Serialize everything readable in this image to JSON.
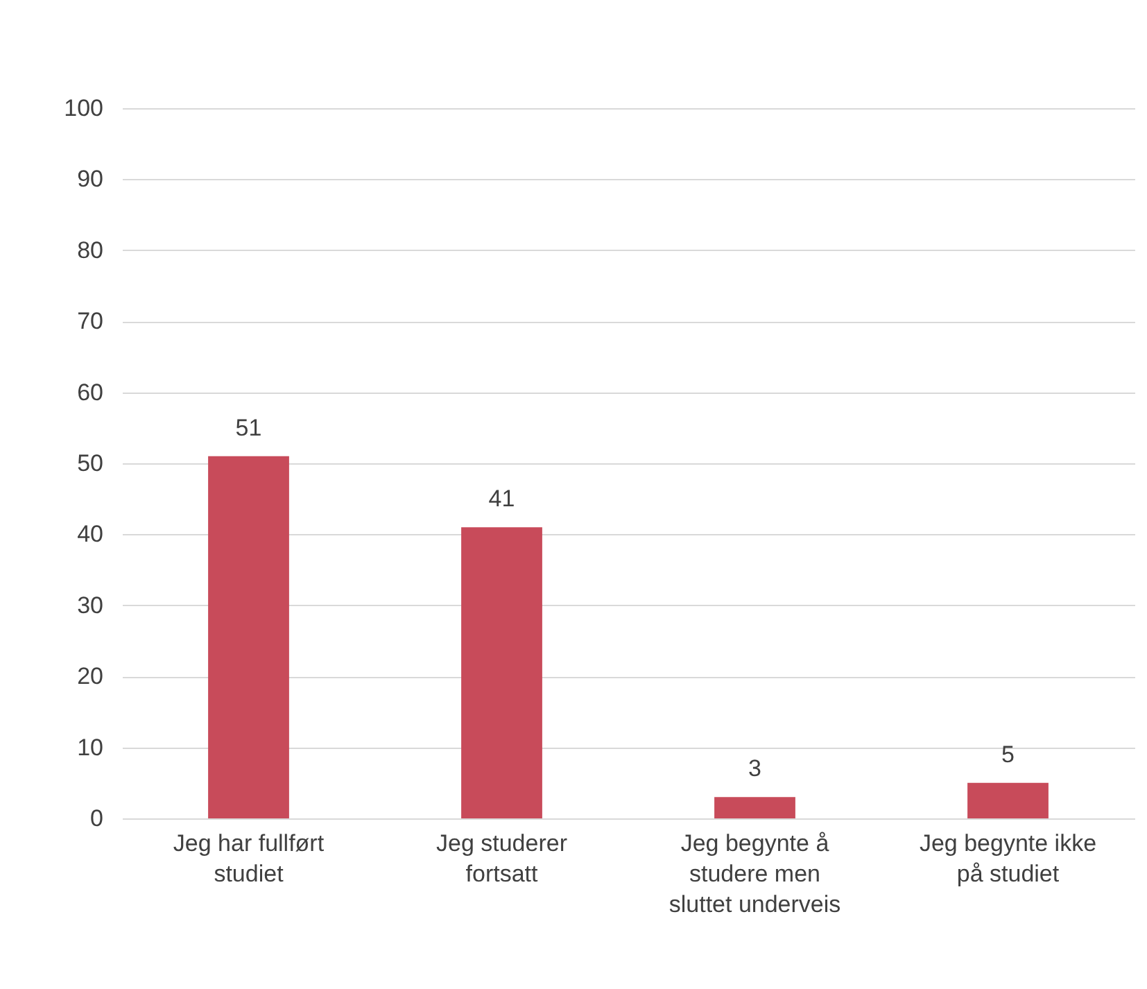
{
  "chart_data": {
    "type": "bar",
    "categories": [
      "Jeg har fullført studiet",
      "Jeg studerer fortsatt",
      "Jeg begynte å studere men sluttet underveis",
      "Jeg begynte ikke på studiet"
    ],
    "values": [
      51,
      41,
      3,
      5
    ],
    "color": "#c84b5a",
    "ylim": [
      0,
      100
    ],
    "yticks": [
      0,
      10,
      20,
      30,
      40,
      50,
      60,
      70,
      80,
      90,
      100
    ],
    "grid": "y",
    "data_labels": true
  }
}
